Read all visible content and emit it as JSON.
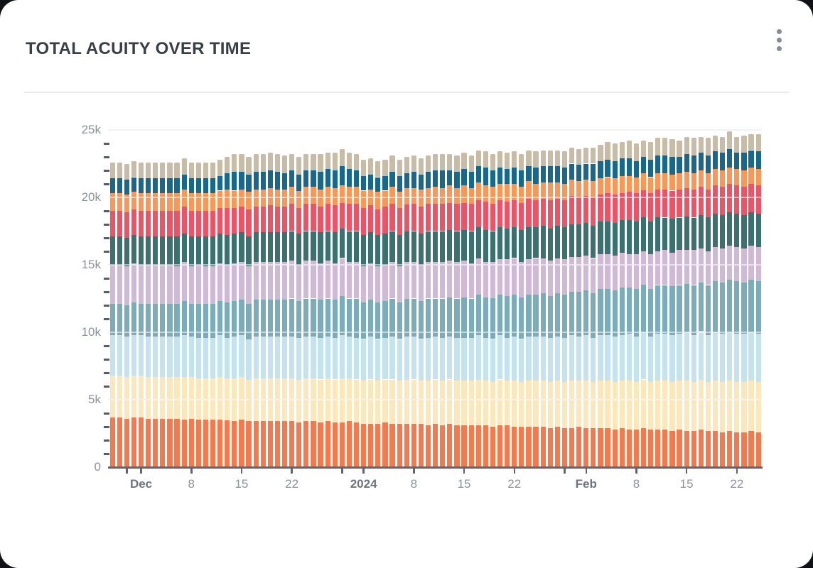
{
  "card": {
    "title": "TOTAL ACUITY OVER TIME",
    "menu_icon": "kebab-menu-icon"
  },
  "style_colors": {
    "card_background": "#ffffff",
    "title_text": "#3a3f46",
    "axis_line": "#5f6670",
    "axis_label": "#8b929b",
    "axis_label_bold": "#6d747e",
    "gridline": "#dde2ee",
    "menu_dots": "#868d97"
  },
  "chart_data": {
    "type": "bar",
    "stacked": true,
    "title": "TOTAL ACUITY OVER TIME",
    "legend": "none",
    "grid": "horizontal",
    "value_unit": 100,
    "y_axis": {
      "min": 0,
      "max": 25000,
      "major_tick_step": 5000,
      "minor_tick_step": 1000,
      "tick_labels": [
        "0",
        "5k",
        "10k",
        "15k",
        "20k",
        "25k"
      ]
    },
    "x_axis": {
      "interval": "day",
      "start_date": "2023-11-27",
      "end_date": "2024-02-25",
      "ticks": [
        {
          "day": 2,
          "label": "",
          "bold": false
        },
        {
          "day": 4,
          "label": "Dec",
          "bold": true
        },
        {
          "day": 11,
          "label": "8",
          "bold": false
        },
        {
          "day": 18,
          "label": "15",
          "bold": false
        },
        {
          "day": 25,
          "label": "22",
          "bold": false
        },
        {
          "day": 32,
          "label": "",
          "bold": false
        },
        {
          "day": 35,
          "label": "2024",
          "bold": true
        },
        {
          "day": 42,
          "label": "8",
          "bold": false
        },
        {
          "day": 49,
          "label": "15",
          "bold": false
        },
        {
          "day": 56,
          "label": "22",
          "bold": false
        },
        {
          "day": 63,
          "label": "",
          "bold": false
        },
        {
          "day": 66,
          "label": "Feb",
          "bold": true
        },
        {
          "day": 73,
          "label": "8",
          "bold": false
        },
        {
          "day": 80,
          "label": "15",
          "bold": false
        },
        {
          "day": 87,
          "label": "22",
          "bold": false
        }
      ]
    },
    "series": [
      {
        "id": "s1",
        "color": "#F7784B",
        "values": [
          37,
          37,
          36,
          37,
          37,
          36,
          36,
          36,
          36,
          36,
          35,
          36,
          35,
          35,
          35,
          35,
          35,
          34,
          35,
          34,
          34,
          34,
          34,
          34,
          34,
          34,
          33,
          34,
          34,
          33,
          34,
          33,
          33,
          34,
          33,
          32,
          32,
          32,
          33,
          32,
          32,
          32,
          32,
          32,
          31,
          32,
          31,
          32,
          31,
          31,
          31,
          31,
          31,
          30,
          31,
          31,
          30,
          30,
          30,
          30,
          30,
          29,
          30,
          29,
          29,
          30,
          29,
          29,
          29,
          29,
          28,
          29,
          28,
          28,
          29,
          28,
          28,
          28,
          27,
          28,
          27,
          27,
          28,
          27,
          27,
          26,
          27,
          26,
          26,
          27,
          26
        ]
      },
      {
        "id": "s2",
        "color": "#FBE7B9",
        "values": [
          31,
          31,
          31,
          31,
          31,
          31,
          31,
          31,
          31,
          31,
          32,
          31,
          31,
          31,
          31,
          32,
          31,
          32,
          32,
          31,
          32,
          32,
          32,
          32,
          32,
          32,
          32,
          32,
          32,
          32,
          32,
          32,
          33,
          32,
          32,
          32,
          33,
          32,
          32,
          33,
          32,
          33,
          33,
          32,
          33,
          33,
          33,
          33,
          33,
          33,
          33,
          34,
          33,
          33,
          34,
          33,
          34,
          33,
          34,
          34,
          34,
          34,
          34,
          34,
          35,
          34,
          35,
          34,
          35,
          35,
          35,
          35,
          36,
          35,
          36,
          35,
          36,
          36,
          36,
          36,
          37,
          36,
          37,
          36,
          37,
          37,
          37,
          37,
          37,
          37,
          37
        ]
      },
      {
        "id": "s3",
        "color": "#C3E3EE",
        "values": [
          30,
          30,
          30,
          30,
          30,
          30,
          30,
          30,
          30,
          30,
          31,
          30,
          30,
          30,
          30,
          31,
          30,
          31,
          31,
          30,
          31,
          31,
          31,
          31,
          31,
          31,
          31,
          31,
          31,
          31,
          31,
          31,
          32,
          31,
          31,
          31,
          32,
          31,
          31,
          32,
          31,
          32,
          32,
          31,
          32,
          32,
          32,
          32,
          32,
          32,
          32,
          33,
          32,
          32,
          33,
          32,
          33,
          32,
          33,
          33,
          33,
          33,
          33,
          33,
          34,
          33,
          34,
          33,
          34,
          34,
          34,
          34,
          35,
          34,
          35,
          34,
          35,
          35,
          35,
          35,
          36,
          35,
          36,
          35,
          36,
          36,
          36,
          36,
          36,
          36,
          36
        ]
      },
      {
        "id": "s4",
        "color": "#7AACBA",
        "values": [
          23,
          23,
          23,
          24,
          23,
          24,
          24,
          24,
          24,
          24,
          25,
          24,
          25,
          25,
          25,
          25,
          26,
          26,
          26,
          26,
          27,
          27,
          27,
          27,
          27,
          28,
          27,
          28,
          28,
          28,
          28,
          28,
          29,
          28,
          29,
          27,
          27,
          27,
          27,
          28,
          27,
          28,
          28,
          28,
          29,
          28,
          29,
          29,
          29,
          30,
          29,
          30,
          30,
          30,
          30,
          31,
          31,
          31,
          31,
          31,
          32,
          31,
          32,
          32,
          32,
          33,
          33,
          33,
          34,
          34,
          34,
          35,
          34,
          35,
          35,
          35,
          36,
          36,
          36,
          36,
          36,
          37,
          36,
          37,
          38,
          38,
          39,
          39,
          38,
          39,
          39
        ]
      },
      {
        "id": "s5",
        "color": "#CFB9D7",
        "values": [
          29,
          29,
          29,
          29,
          29,
          29,
          29,
          29,
          29,
          28,
          29,
          28,
          29,
          28,
          28,
          28,
          28,
          28,
          28,
          28,
          28,
          28,
          28,
          28,
          28,
          28,
          27,
          28,
          28,
          27,
          28,
          27,
          28,
          27,
          27,
          27,
          27,
          27,
          27,
          27,
          27,
          27,
          27,
          27,
          27,
          27,
          27,
          27,
          27,
          27,
          26,
          27,
          26,
          27,
          26,
          27,
          27,
          26,
          26,
          27,
          26,
          26,
          26,
          26,
          26,
          26,
          26,
          26,
          26,
          26,
          26,
          26,
          25,
          26,
          25,
          26,
          25,
          26,
          25,
          26,
          25,
          26,
          25,
          25,
          25,
          25,
          25,
          25,
          25,
          25,
          25
        ]
      },
      {
        "id": "s6",
        "color": "#3B7171",
        "values": [
          21,
          21,
          21,
          21,
          21,
          21,
          21,
          21,
          21,
          22,
          21,
          22,
          21,
          22,
          22,
          22,
          22,
          22,
          22,
          22,
          22,
          22,
          22,
          22,
          22,
          22,
          23,
          22,
          22,
          23,
          22,
          23,
          22,
          23,
          23,
          23,
          23,
          23,
          23,
          23,
          23,
          23,
          23,
          23,
          23,
          23,
          23,
          23,
          23,
          23,
          24,
          23,
          24,
          23,
          24,
          23,
          23,
          24,
          24,
          23,
          24,
          24,
          24,
          24,
          24,
          24,
          24,
          24,
          24,
          24,
          24,
          24,
          25,
          24,
          25,
          24,
          25,
          24,
          25,
          24,
          25,
          24,
          25,
          25,
          25,
          25,
          25,
          25,
          25,
          25,
          25
        ]
      },
      {
        "id": "s7",
        "color": "#EF5264",
        "values": [
          19,
          19,
          19,
          19,
          19,
          19,
          19,
          19,
          19,
          19,
          20,
          19,
          19,
          19,
          19,
          19,
          20,
          19,
          19,
          20,
          19,
          19,
          20,
          19,
          19,
          20,
          19,
          20,
          20,
          19,
          20,
          20,
          19,
          20,
          20,
          20,
          20,
          19,
          20,
          20,
          20,
          20,
          20,
          20,
          20,
          20,
          20,
          20,
          20,
          20,
          20,
          20,
          21,
          20,
          20,
          20,
          20,
          20,
          21,
          20,
          20,
          21,
          20,
          20,
          21,
          20,
          20,
          21,
          20,
          21,
          21,
          20,
          21,
          21,
          20,
          21,
          21,
          21,
          21,
          21,
          21,
          21,
          21,
          21,
          21,
          21,
          21,
          21,
          21,
          21,
          21
        ]
      },
      {
        "id": "s8",
        "color": "#FB9655",
        "values": [
          13,
          13,
          13,
          13,
          13,
          13,
          13,
          13,
          13,
          13,
          13,
          13,
          13,
          13,
          13,
          13,
          14,
          13,
          13,
          13,
          13,
          13,
          13,
          13,
          13,
          13,
          13,
          13,
          13,
          13,
          13,
          13,
          13,
          13,
          13,
          13,
          12,
          13,
          12,
          13,
          12,
          12,
          12,
          13,
          12,
          13,
          12,
          13,
          12,
          13,
          12,
          13,
          12,
          13,
          12,
          13,
          12,
          12,
          13,
          12,
          12,
          13,
          12,
          12,
          12,
          12,
          12,
          12,
          12,
          12,
          12,
          13,
          12,
          12,
          13,
          12,
          12,
          12,
          12,
          12,
          12,
          12,
          12,
          12,
          12,
          12,
          12,
          12,
          12,
          12,
          12
        ]
      },
      {
        "id": "s9",
        "color": "#17688A",
        "values": [
          11,
          11,
          11,
          11,
          11,
          11,
          11,
          11,
          11,
          11,
          11,
          11,
          11,
          11,
          11,
          11,
          12,
          14,
          13,
          13,
          13,
          13,
          13,
          13,
          12,
          12,
          12,
          12,
          12,
          13,
          13,
          13,
          14,
          13,
          12,
          11,
          11,
          11,
          11,
          11,
          12,
          11,
          12,
          11,
          12,
          12,
          13,
          11,
          12,
          12,
          12,
          12,
          13,
          12,
          12,
          11,
          12,
          12,
          11,
          12,
          12,
          12,
          12,
          12,
          12,
          12,
          12,
          13,
          13,
          13,
          13,
          13,
          13,
          12,
          12,
          13,
          13,
          13,
          13,
          12,
          13,
          13,
          13,
          13,
          13,
          13,
          14,
          12,
          13,
          13,
          13
        ]
      },
      {
        "id": "s10",
        "color": "#C8BCA6",
        "values": [
          12,
          12,
          12,
          12,
          12,
          12,
          12,
          12,
          12,
          12,
          12,
          12,
          12,
          12,
          12,
          12,
          12,
          13,
          13,
          13,
          13,
          13,
          13,
          13,
          13,
          12,
          13,
          12,
          12,
          13,
          12,
          13,
          13,
          12,
          12,
          12,
          12,
          12,
          12,
          12,
          12,
          12,
          12,
          12,
          12,
          12,
          12,
          12,
          12,
          12,
          12,
          12,
          12,
          12,
          12,
          12,
          12,
          12,
          12,
          12,
          12,
          12,
          12,
          12,
          12,
          12,
          12,
          12,
          12,
          13,
          13,
          12,
          13,
          13,
          12,
          13,
          13,
          13,
          13,
          12,
          13,
          13,
          12,
          13,
          12,
          12,
          13,
          12,
          13,
          12,
          13
        ]
      }
    ]
  }
}
